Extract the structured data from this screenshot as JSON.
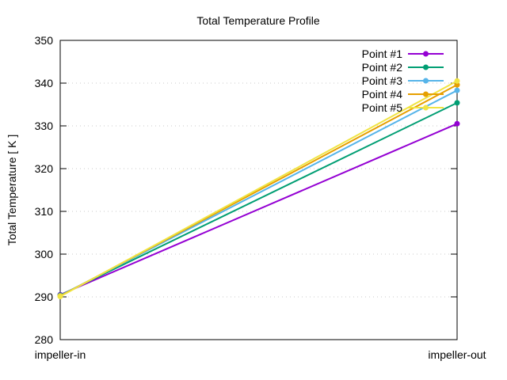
{
  "chart_data": {
    "type": "line",
    "title": "Total Temperature Profile",
    "xlabel": "",
    "ylabel": "Total Temperature [ K ]",
    "categories": [
      "impeller-in",
      "impeller-out"
    ],
    "ylim": [
      280,
      350
    ],
    "yticks": [
      280,
      290,
      300,
      310,
      320,
      330,
      340,
      350
    ],
    "grid": true,
    "legend_position": "top-right",
    "series": [
      {
        "name": "Point #1",
        "values": [
          290.5,
          330.5
        ],
        "color": "#9400d3"
      },
      {
        "name": "Point #2",
        "values": [
          290.4,
          335.4
        ],
        "color": "#009e73"
      },
      {
        "name": "Point #3",
        "values": [
          290.3,
          338.3
        ],
        "color": "#56b4e9"
      },
      {
        "name": "Point #4",
        "values": [
          290.2,
          339.6
        ],
        "color": "#e69f00"
      },
      {
        "name": "Point #5",
        "values": [
          290.1,
          340.5
        ],
        "color": "#f0e442"
      }
    ]
  }
}
